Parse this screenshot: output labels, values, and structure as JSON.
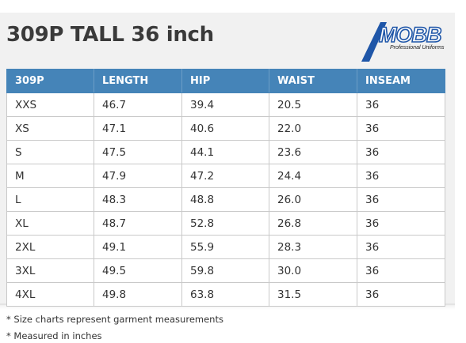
{
  "title": "309P TALL 36 inch",
  "logo": {
    "wordmark": "MOBB",
    "tagline": "Professional Uniforms"
  },
  "table": {
    "headers": [
      "309P",
      "LENGTH",
      "HIP",
      "WAIST",
      "INSEAM"
    ],
    "rows": [
      [
        "XXS",
        "46.7",
        "39.4",
        "20.5",
        "36"
      ],
      [
        "XS",
        "47.1",
        "40.6",
        "22.0",
        "36"
      ],
      [
        "S",
        "47.5",
        "44.1",
        "23.6",
        "36"
      ],
      [
        "M",
        "47.9",
        "47.2",
        "24.4",
        "36"
      ],
      [
        "L",
        "48.3",
        "48.8",
        "26.0",
        "36"
      ],
      [
        "XL",
        "48.7",
        "52.8",
        "26.8",
        "36"
      ],
      [
        "2XL",
        "49.1",
        "55.9",
        "28.3",
        "36"
      ],
      [
        "3XL",
        "49.5",
        "59.8",
        "30.0",
        "36"
      ],
      [
        "4XL",
        "49.8",
        "63.8",
        "31.5",
        "36"
      ]
    ]
  },
  "notes": [
    "* Size charts represent garment measurements",
    "* Measured in inches"
  ],
  "colors": {
    "header_bg": "#4584b8",
    "logo_blue": "#1f56a8",
    "title_text": "#3a3a3a"
  }
}
